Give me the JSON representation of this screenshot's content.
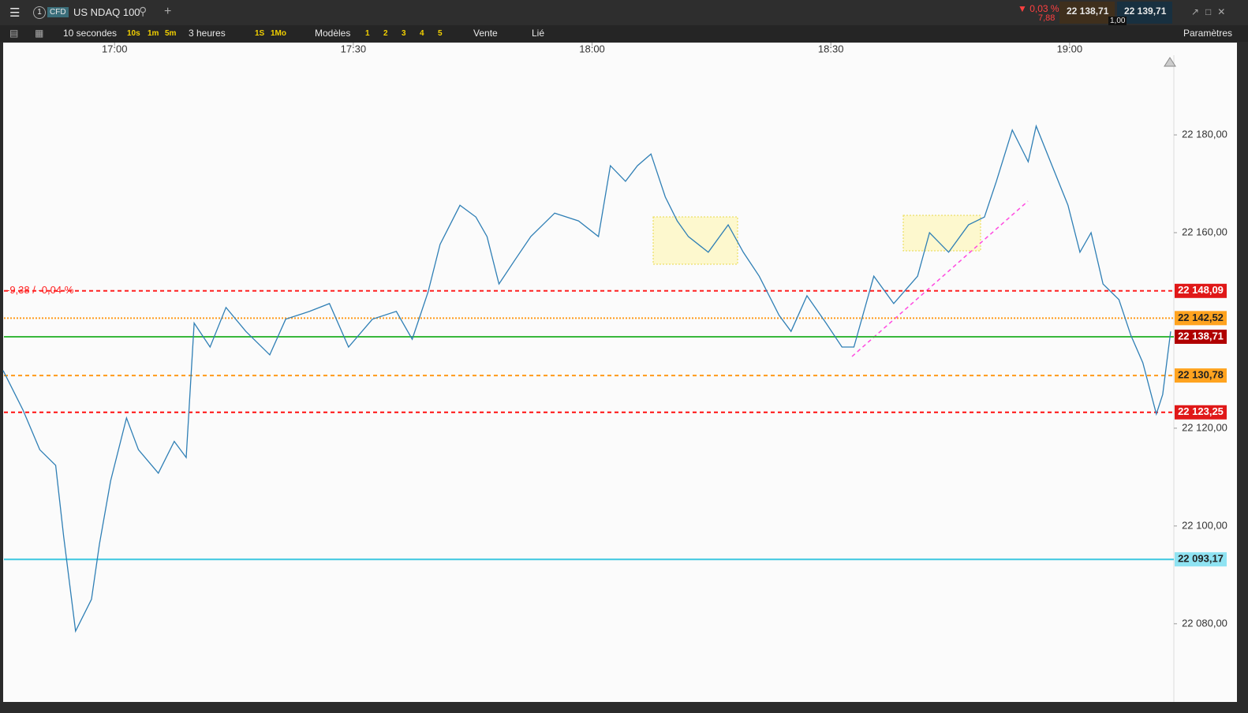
{
  "toolbar": {
    "tab_number": "1",
    "instrument_type": "CFD",
    "instrument": "US NDAQ 100",
    "change_percent": "0,03 %",
    "change_points": "7,88",
    "sell_price": "22 138,71",
    "buy_price": "22 139,71",
    "quantity": "1,00"
  },
  "chart_toolbar": {
    "interval": "10 secondes",
    "interval_buttons": [
      "10s",
      "1m",
      "5m"
    ],
    "range": "3 heures",
    "range_buttons": [
      "1S",
      "1Mo"
    ],
    "templates": "Modèles",
    "layout_buttons": [
      "1",
      "2",
      "3",
      "4",
      "5"
    ],
    "order": "Vente",
    "link": "Lié",
    "settings": "Paramètres"
  },
  "chart_data": {
    "type": "line",
    "color": "#2f7fb5",
    "x": [
      1006,
      1008.5,
      1010.6,
      1012.6,
      1013.6,
      1015.1,
      1017.1,
      1018.1,
      1019.5,
      1021.5,
      1023,
      1025.5,
      1027.5,
      1029,
      1030,
      1032,
      1034,
      1036.5,
      1039.5,
      1041.5,
      1044.5,
      1047,
      1049.4,
      1052.4,
      1055.4,
      1057.4,
      1059.4,
      1060.9,
      1063.4,
      1065.4,
      1066.8,
      1068.3,
      1070.3,
      1072.3,
      1075.3,
      1078.3,
      1080.8,
      1082.3,
      1084.2,
      1085.7,
      1087.4,
      1089.2,
      1090.7,
      1092.1,
      1094.6,
      1097.1,
      1099,
      1101,
      1103.5,
      1105,
      1107,
      1109.4,
      1111.4,
      1112.9,
      1115.4,
      1117.9,
      1120.9,
      1122.4,
      1124.8,
      1127.3,
      1129.3,
      1130.8,
      1132.8,
      1134.8,
      1135.8,
      1137.8,
      1139.8,
      1141.3,
      1142.7,
      1144.2,
      1146.2,
      1147.7,
      1149.2,
      1150.9,
      1151.7,
      1152.7
    ],
    "values": [
      22131.8,
      22123.7,
      22115.6,
      22112.4,
      22097.9,
      22078.5,
      22085,
      22096.3,
      22109.2,
      22122.1,
      22115.6,
      22110.8,
      22117.3,
      22114,
      22141.5,
      22136.6,
      22144.7,
      22139.8,
      22135,
      22142.3,
      22143.9,
      22145.5,
      22136.6,
      22142.3,
      22143.9,
      22138.2,
      22147.9,
      22157.6,
      22165.6,
      22163.2,
      22159.2,
      22149.5,
      22154.4,
      22159.2,
      22164,
      22162.4,
      22159.2,
      22173.7,
      22170.5,
      22173.7,
      22176.1,
      22167.3,
      22162.4,
      22159.2,
      22156,
      22161.6,
      22156,
      22151.1,
      22143.1,
      22139.8,
      22147.1,
      22141.5,
      22136.6,
      22136.6,
      22151.1,
      22145.5,
      22151.1,
      22160,
      22156,
      22161.6,
      22163.2,
      22170.5,
      22181,
      22174.5,
      22181.8,
      22173.7,
      22165.6,
      22156,
      22160,
      22149.5,
      22146.3,
      22139,
      22133.4,
      22122.9,
      22126.9,
      22139.8
    ],
    "xlim": [
      1006.1,
      1153.1
    ],
    "xticks": [
      {
        "value": 1020,
        "label": "17:00"
      },
      {
        "value": 1050,
        "label": "17:30"
      },
      {
        "value": 1080,
        "label": "18:00"
      },
      {
        "value": 1110,
        "label": "18:30"
      },
      {
        "value": 1140,
        "label": "19:00"
      }
    ],
    "ylim": [
      22064,
      22196.3
    ],
    "yticks": [
      {
        "value": 22080,
        "label": "22 080,00"
      },
      {
        "value": 22100,
        "label": "22 100,00"
      },
      {
        "value": 22120,
        "label": "22 120,00"
      },
      {
        "value": 22160,
        "label": "22 160,00"
      },
      {
        "value": 22180,
        "label": "22 180,00"
      }
    ],
    "levels": [
      {
        "value": 22148.09,
        "label": "22 148,09",
        "color": "#ff2020",
        "style": "dashed",
        "label_background": "#e01818",
        "label_color": "#ffffff"
      },
      {
        "value": 22142.52,
        "label": "22 142,52",
        "color": "#ff9a1a",
        "style": "dotted",
        "label_background": "#ffa31f",
        "label_color": "#222222"
      },
      {
        "value": 22138.71,
        "label": "22 138,71",
        "color": "#39b83c",
        "style": "solid",
        "label_background": "#b00000",
        "label_color": "#ffffff"
      },
      {
        "value": 22130.78,
        "label": "22 130,78",
        "color": "#ff9a1a",
        "style": "dashed",
        "label_background": "#ffa31f",
        "label_color": "#222222"
      },
      {
        "value": 22123.25,
        "label": "22 123,25",
        "color": "#ff1010",
        "style": "dashed",
        "label_background": "#e01818",
        "label_color": "#ffffff"
      },
      {
        "value": 22093.17,
        "label": "22 093,17",
        "color": "#3cc8e0",
        "style": "solid",
        "label_background": "#8fe3f2",
        "label_color": "#222222"
      }
    ],
    "annotation": "-9,38 / -0,04 %"
  }
}
